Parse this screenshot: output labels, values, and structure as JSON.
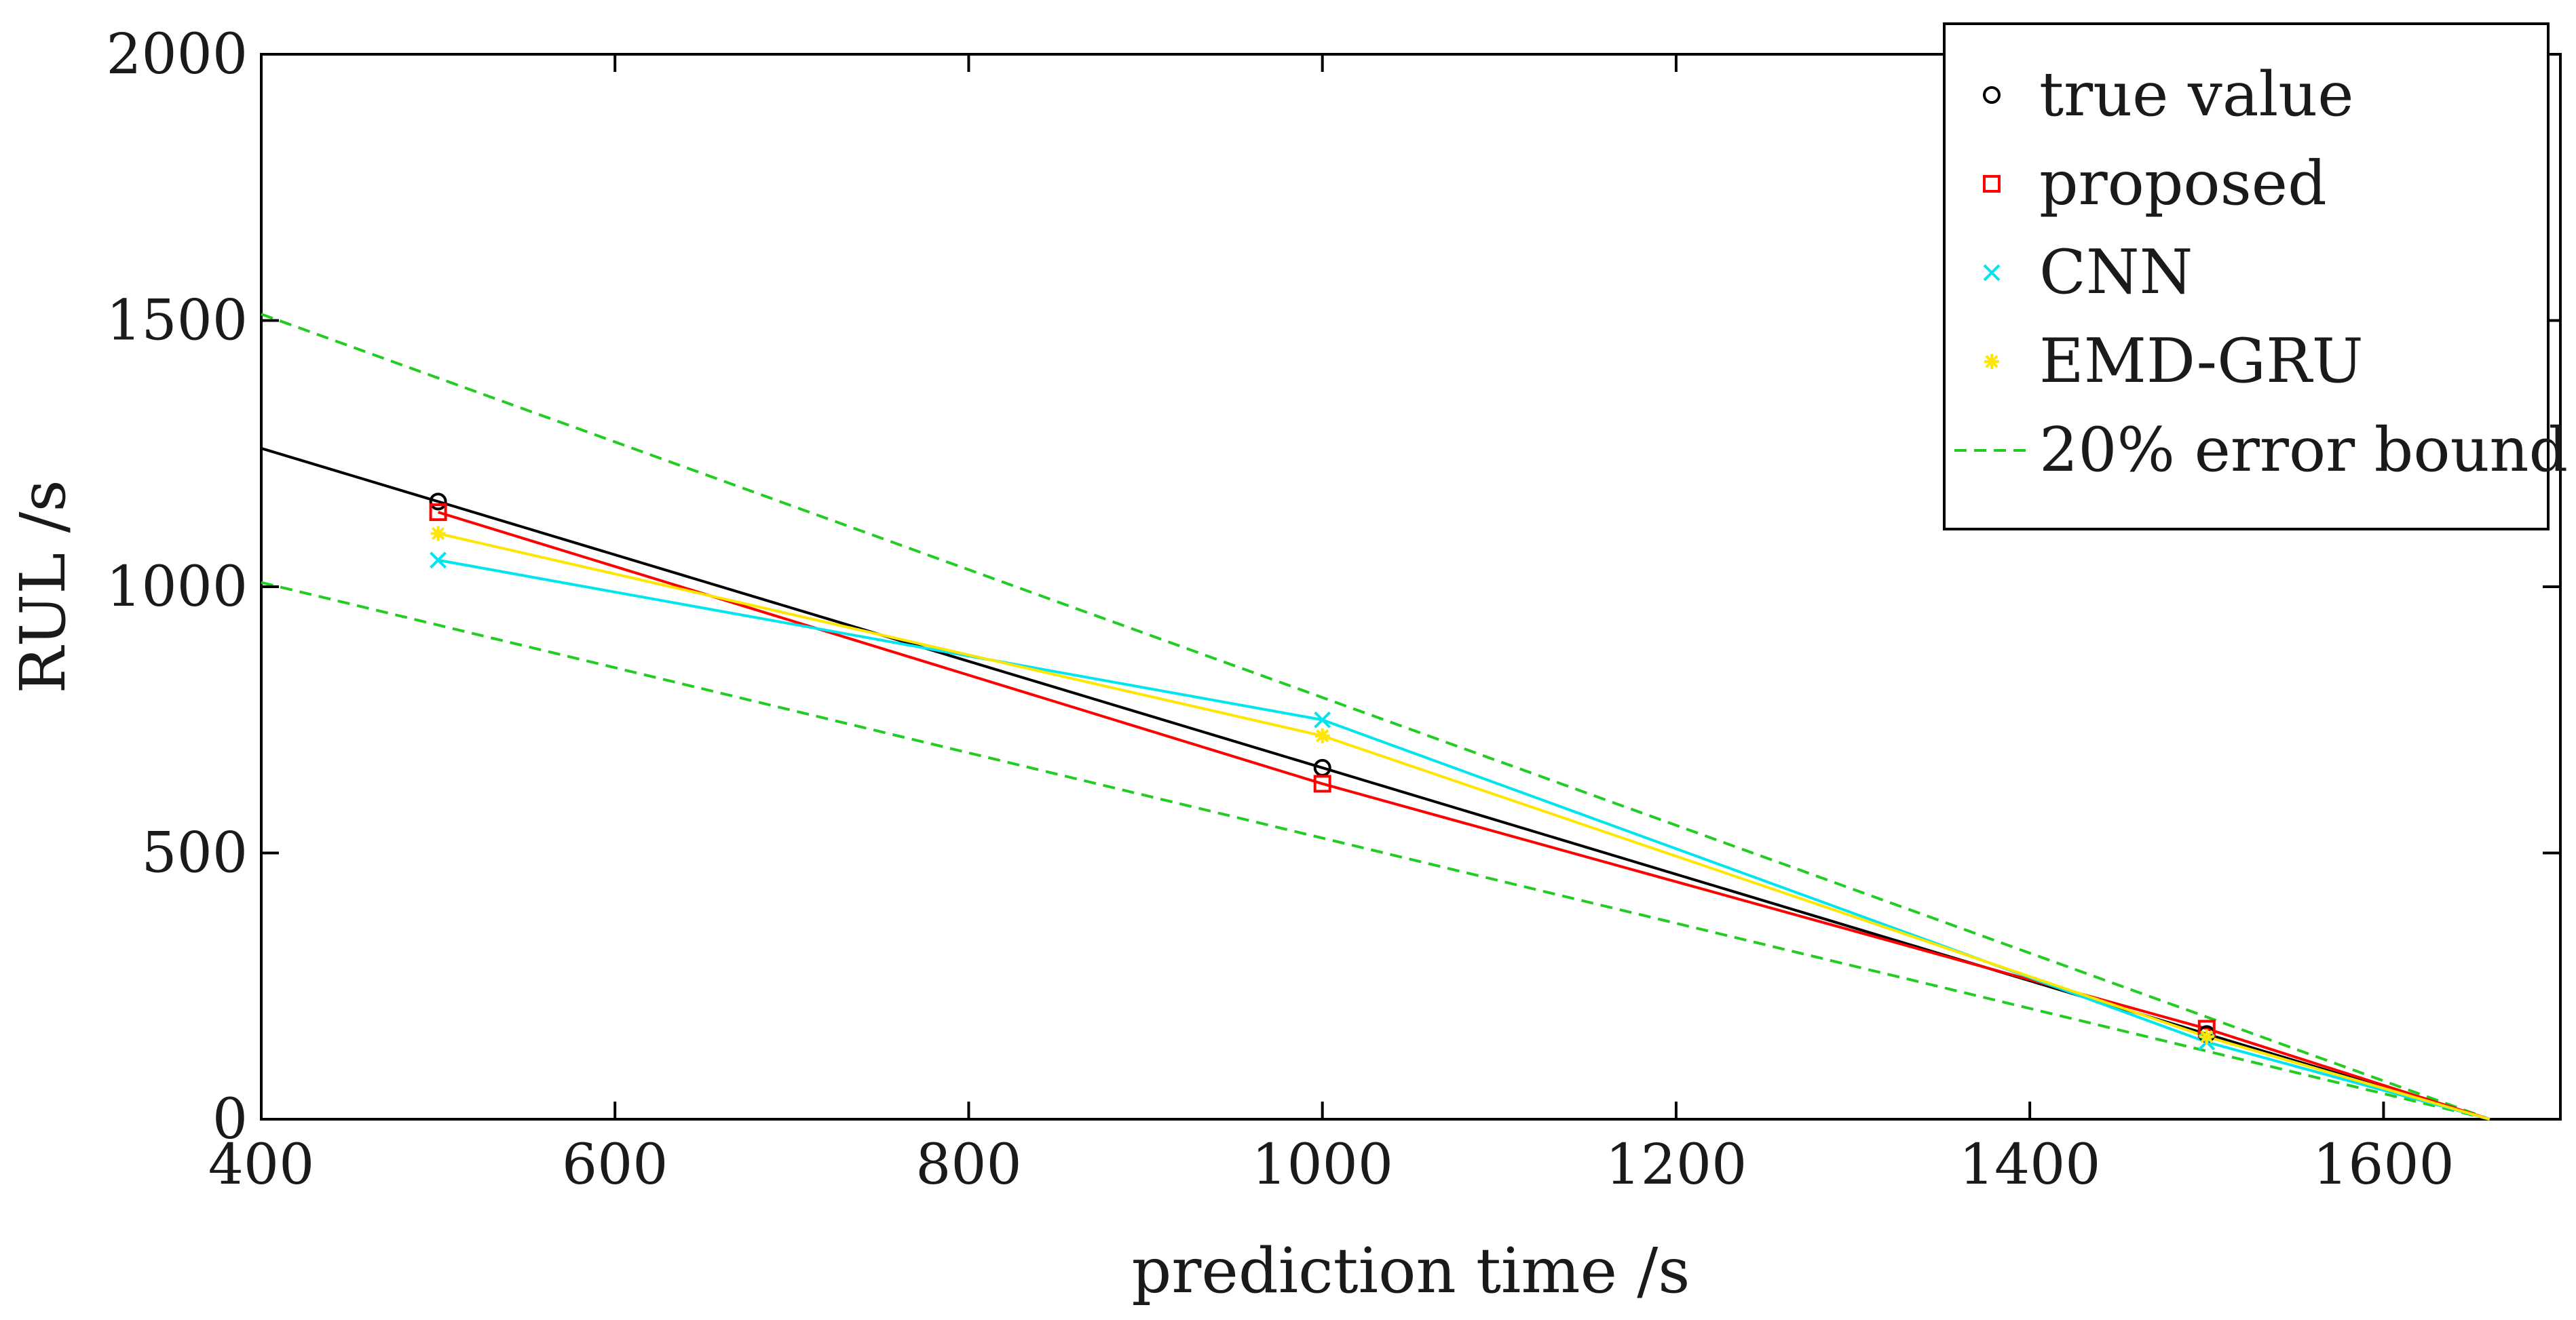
{
  "chart_data": {
    "type": "line",
    "title": "",
    "xlabel": "prediction time /s",
    "ylabel": "RUL /s",
    "xlim": [
      400,
      1700
    ],
    "ylim": [
      0,
      2000
    ],
    "xticks": [
      400,
      600,
      800,
      1000,
      1200,
      1400,
      1600
    ],
    "yticks": [
      0,
      500,
      1000,
      1500,
      2000
    ],
    "grid": false,
    "legend_position": "top-right",
    "series": [
      {
        "name": "true value",
        "marker": "circle",
        "color": "#000000",
        "x": [
          500,
          1000,
          1500
        ],
        "y": [
          1160,
          660,
          160
        ],
        "line": {
          "x": [
            400,
            1660
          ],
          "y": [
            1260,
            0
          ]
        }
      },
      {
        "name": "proposed",
        "marker": "square",
        "color": "#ff0000",
        "x": [
          500,
          1000,
          1500
        ],
        "y": [
          1140,
          630,
          170
        ]
      },
      {
        "name": "CNN",
        "marker": "x",
        "color": "#00e5ee",
        "x": [
          500,
          1000,
          1500
        ],
        "y": [
          1050,
          750,
          145
        ]
      },
      {
        "name": "EMD-GRU",
        "marker": "asterisk",
        "color": "#ffe600",
        "x": [
          500,
          1000,
          1500
        ],
        "y": [
          1100,
          720,
          155
        ]
      },
      {
        "name": "20% error bound",
        "marker": "none",
        "dashed": true,
        "color": "#22cc22",
        "lines": [
          {
            "x": [
              400,
              1660
            ],
            "y": [
              1512,
              0
            ]
          },
          {
            "x": [
              400,
              1660
            ],
            "y": [
              1008,
              0
            ]
          }
        ]
      }
    ]
  }
}
